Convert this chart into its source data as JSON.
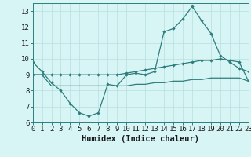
{
  "xlabel": "Humidex (Indice chaleur)",
  "x": [
    0,
    1,
    2,
    3,
    4,
    5,
    6,
    7,
    8,
    9,
    10,
    11,
    12,
    13,
    14,
    15,
    16,
    17,
    18,
    19,
    20,
    21,
    22,
    23
  ],
  "line1": [
    9.8,
    9.2,
    8.5,
    8.0,
    7.2,
    6.6,
    6.4,
    6.6,
    8.4,
    8.3,
    9.0,
    9.1,
    9.0,
    9.2,
    11.7,
    11.9,
    12.5,
    13.3,
    12.4,
    11.6,
    10.2,
    9.8,
    9.4,
    9.2
  ],
  "line2": [
    9.0,
    9.0,
    9.0,
    9.0,
    9.0,
    9.0,
    9.0,
    9.0,
    9.0,
    9.0,
    9.1,
    9.2,
    9.3,
    9.4,
    9.5,
    9.6,
    9.7,
    9.8,
    9.9,
    9.9,
    10.0,
    9.9,
    9.8,
    8.6
  ],
  "line3": [
    9.0,
    9.0,
    8.3,
    8.3,
    8.3,
    8.3,
    8.3,
    8.3,
    8.3,
    8.3,
    8.3,
    8.4,
    8.4,
    8.5,
    8.5,
    8.6,
    8.6,
    8.7,
    8.7,
    8.8,
    8.8,
    8.8,
    8.8,
    8.6
  ],
  "line_color": "#2e7d7d",
  "bg_color": "#d8f5f5",
  "grid_color": "#b8dede",
  "ylim": [
    6,
    13.5
  ],
  "yticks": [
    6,
    7,
    8,
    9,
    10,
    11,
    12,
    13
  ],
  "xlim": [
    0,
    23
  ],
  "xticks": [
    0,
    1,
    2,
    3,
    4,
    5,
    6,
    7,
    8,
    9,
    10,
    11,
    12,
    13,
    14,
    15,
    16,
    17,
    18,
    19,
    20,
    21,
    22,
    23
  ],
  "tick_fontsize": 6.5,
  "label_fontsize": 7.5
}
